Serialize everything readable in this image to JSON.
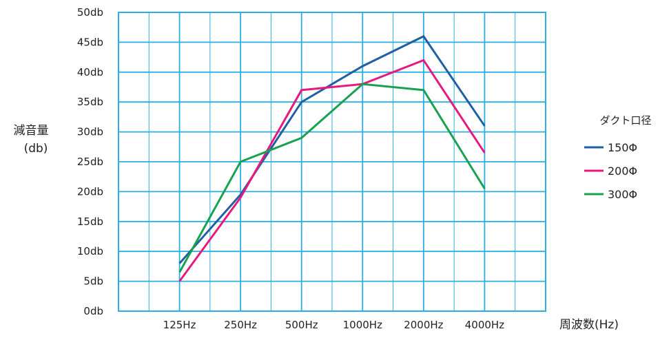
{
  "chart_data": {
    "type": "line",
    "categories": [
      "125Hz",
      "250Hz",
      "500Hz",
      "1000Hz",
      "2000Hz",
      "4000Hz"
    ],
    "yticks": [
      "0db",
      "5db",
      "10db",
      "15db",
      "20db",
      "25db",
      "30db",
      "35db",
      "40db",
      "45db",
      "50db"
    ],
    "ylim": [
      0,
      50
    ],
    "ylabel": [
      "減音量",
      "(db)"
    ],
    "xlabel": "周波数(Hz)",
    "grid": true,
    "legend": {
      "title": "ダクト口径",
      "placement": "right"
    },
    "series": [
      {
        "name": "150Φ",
        "color": "#1f5fa6",
        "values": [
          8,
          19.5,
          35,
          41,
          46,
          31
        ]
      },
      {
        "name": "200Φ",
        "color": "#e5197e",
        "values": [
          5,
          19,
          37,
          38,
          42,
          26.5
        ]
      },
      {
        "name": "300Φ",
        "color": "#1aa150",
        "values": [
          6.5,
          25,
          29,
          38,
          37,
          20.5
        ]
      }
    ]
  }
}
